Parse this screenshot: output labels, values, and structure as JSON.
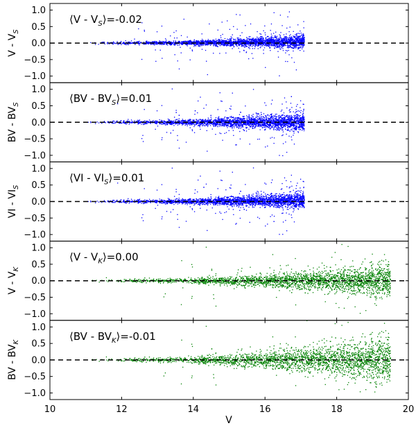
{
  "chart_data": {
    "type": "scatter",
    "shared_x": {
      "label": "V",
      "lim": [
        10,
        20
      ],
      "ticks": [
        10,
        12,
        14,
        16,
        18,
        20
      ],
      "tick_labels": [
        "10",
        "12",
        "14",
        "16",
        "18",
        "20"
      ]
    },
    "panels": [
      {
        "ylabel": "V - V",
        "ylabel_sub": "S",
        "annotation": {
          "prefix": "⟨V - V",
          "sub": "S",
          "suffix": "⟩=-0.02"
        },
        "ylim": [
          -1.2,
          1.2
        ],
        "yticks": [
          -1.0,
          -0.5,
          0.0,
          0.5,
          1.0
        ],
        "ytick_labels": [
          "−1.0",
          "−0.5",
          "0.0",
          "0.5",
          "1.0"
        ],
        "reference_line": 0.0,
        "series": [
          {
            "color": "#0000ff",
            "x_range": [
              11.0,
              17.1
            ],
            "spread_at_bright": 0.02,
            "spread_at_faint": 0.1,
            "trend_at_faint": 0.05,
            "outlier_fraction": 0.06
          }
        ]
      },
      {
        "ylabel": "BV - BV",
        "ylabel_sub": "S",
        "annotation": {
          "prefix": "⟨BV - BV",
          "sub": "S",
          "suffix": "⟩=0.01"
        },
        "ylim": [
          -1.2,
          1.2
        ],
        "yticks": [
          -1.0,
          -0.5,
          0.0,
          0.5,
          1.0
        ],
        "ytick_labels": [
          "−1.0",
          "−0.5",
          "0.0",
          "0.5",
          "1.0"
        ],
        "reference_line": 0.0,
        "series": [
          {
            "color": "#0000ff",
            "x_range": [
              11.0,
              17.1
            ],
            "spread_at_bright": 0.02,
            "spread_at_faint": 0.14,
            "trend_at_faint": 0.0,
            "outlier_fraction": 0.07
          }
        ]
      },
      {
        "ylabel": "VI - VI",
        "ylabel_sub": "S",
        "annotation": {
          "prefix": "⟨VI - VI",
          "sub": "S",
          "suffix": "⟩=0.01"
        },
        "ylim": [
          -1.2,
          1.2
        ],
        "yticks": [
          -1.0,
          -0.5,
          0.0,
          0.5,
          1.0
        ],
        "ytick_labels": [
          "−1.0",
          "−0.5",
          "0.0",
          "0.5",
          "1.0"
        ],
        "reference_line": 0.0,
        "series": [
          {
            "color": "#0000ff",
            "x_range": [
              11.0,
              17.1
            ],
            "spread_at_bright": 0.02,
            "spread_at_faint": 0.12,
            "trend_at_faint": 0.03,
            "outlier_fraction": 0.07
          }
        ]
      },
      {
        "ylabel": "V - V",
        "ylabel_sub": "K",
        "annotation": {
          "prefix": "⟨V - V",
          "sub": "K",
          "suffix": "⟩=0.00"
        },
        "ylim": [
          -1.2,
          1.2
        ],
        "yticks": [
          -1.0,
          -0.5,
          0.0,
          0.5,
          1.0
        ],
        "ytick_labels": [
          "−1.0",
          "−0.5",
          "0.0",
          "0.5",
          "1.0"
        ],
        "reference_line": 0.0,
        "series": [
          {
            "color": "#008000",
            "x_range": [
              11.0,
              19.5
            ],
            "spread_at_bright": 0.02,
            "spread_at_faint": 0.25,
            "trend_at_faint": 0.0,
            "outlier_fraction": 0.04
          }
        ]
      },
      {
        "ylabel": "BV - BV",
        "ylabel_sub": "K",
        "annotation": {
          "prefix": "⟨BV - BV",
          "sub": "K",
          "suffix": "⟩=-0.01"
        },
        "ylim": [
          -1.2,
          1.2
        ],
        "yticks": [
          -1.0,
          -0.5,
          0.0,
          0.5,
          1.0
        ],
        "ytick_labels": [
          "−1.0",
          "−0.5",
          "0.0",
          "0.5",
          "1.0"
        ],
        "reference_line": 0.0,
        "series": [
          {
            "color": "#008000",
            "x_range": [
              11.0,
              19.5
            ],
            "spread_at_bright": 0.02,
            "spread_at_faint": 0.35,
            "trend_at_faint": 0.0,
            "outlier_fraction": 0.04
          }
        ]
      }
    ]
  }
}
